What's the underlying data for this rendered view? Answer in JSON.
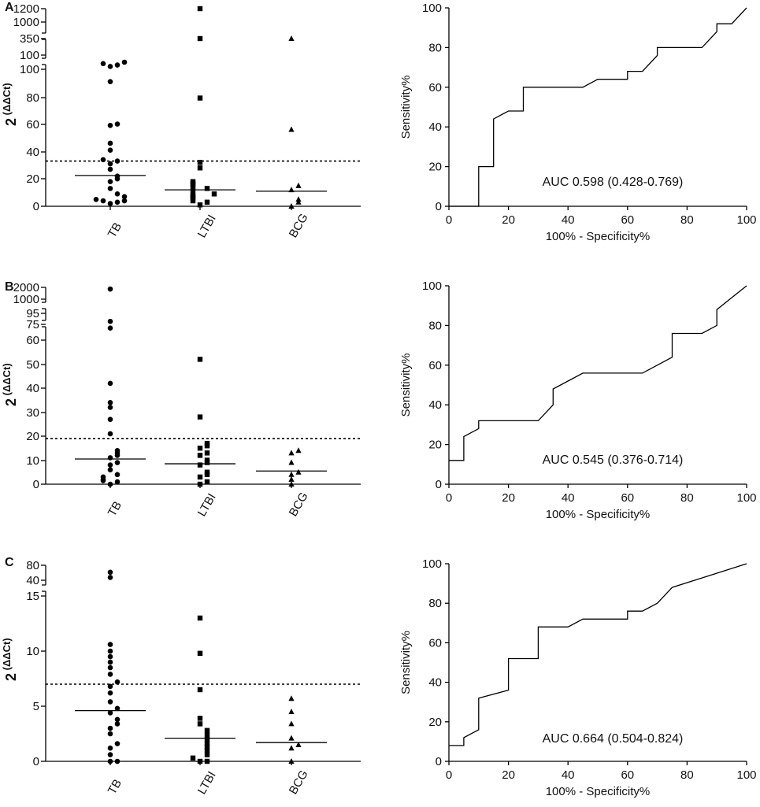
{
  "chart_data": [
    {
      "type": "scatter",
      "panel": "A",
      "kind": "strip",
      "ylabel_base": "2",
      "ylabel_exp": "(ΔΔCt)",
      "categories": [
        "TB",
        "LTBI",
        "BCG"
      ],
      "markers": [
        "circle",
        "square",
        "triangle"
      ],
      "y_ticks": [
        "0",
        "20",
        "40",
        "60",
        "80",
        "100",
        "100",
        "350",
        "1000",
        "1200"
      ],
      "series": [
        {
          "name": "TB",
          "values": [
            2,
            3,
            4,
            4,
            5,
            7,
            9,
            13,
            18,
            20,
            22,
            27,
            31,
            33,
            34,
            41,
            46,
            59,
            60,
            91,
            120,
            130,
            140,
            150
          ]
        },
        {
          "name": "LTBI",
          "values": [
            1,
            3,
            4,
            6,
            7,
            8,
            9,
            11,
            13,
            14,
            16,
            17,
            18,
            28,
            32,
            79,
            350,
            1200
          ]
        },
        {
          "name": "BCG",
          "values": [
            0,
            3,
            5,
            12,
            15,
            56,
            350
          ]
        }
      ],
      "medians": [
        22.5,
        12,
        11
      ],
      "cutoff": 33,
      "roc": {
        "xlabel": "100% - Specificity%",
        "ylabel": "Sensitivity%",
        "x_ticks": [
          0,
          20,
          40,
          60,
          80,
          100
        ],
        "y_ticks": [
          0,
          20,
          40,
          60,
          80,
          100
        ],
        "auc_text": "AUC 0.598 (0.428-0.769)",
        "points": [
          [
            0,
            0
          ],
          [
            10,
            0
          ],
          [
            10,
            20
          ],
          [
            15,
            20
          ],
          [
            15,
            44
          ],
          [
            20,
            48
          ],
          [
            25,
            48
          ],
          [
            25,
            60
          ],
          [
            45,
            60
          ],
          [
            50,
            64
          ],
          [
            60,
            64
          ],
          [
            60,
            68
          ],
          [
            65,
            68
          ],
          [
            70,
            76
          ],
          [
            70,
            80
          ],
          [
            85,
            80
          ],
          [
            90,
            88
          ],
          [
            90,
            92
          ],
          [
            95,
            92
          ],
          [
            100,
            100
          ]
        ]
      }
    },
    {
      "type": "scatter",
      "panel": "B",
      "kind": "strip",
      "ylabel_base": "2",
      "ylabel_exp": "(ΔΔCt)",
      "categories": [
        "TB",
        "LTBI",
        "BCG"
      ],
      "markers": [
        "circle",
        "square",
        "triangle"
      ],
      "y_ticks": [
        "0",
        "10",
        "20",
        "30",
        "40",
        "50",
        "60",
        "75",
        "95",
        "1000",
        "2000"
      ],
      "series": [
        {
          "name": "TB",
          "values": [
            0,
            1,
            1.5,
            2,
            3,
            4,
            6,
            8,
            9,
            11,
            12,
            13,
            14,
            21,
            27,
            32,
            34,
            42,
            78,
            88,
            1800
          ]
        },
        {
          "name": "LTBI",
          "values": [
            0,
            1,
            3,
            4,
            5,
            8,
            9,
            10,
            12,
            13,
            15,
            16,
            17,
            28,
            52
          ]
        },
        {
          "name": "BCG",
          "values": [
            0,
            2,
            4,
            5,
            9,
            13,
            14
          ]
        }
      ],
      "medians": [
        10.5,
        8.5,
        5.5
      ],
      "cutoff": 19,
      "roc": {
        "xlabel": "100% - Specificity%",
        "ylabel": "Sensitivity%",
        "x_ticks": [
          0,
          20,
          40,
          60,
          80,
          100
        ],
        "y_ticks": [
          0,
          20,
          40,
          60,
          80,
          100
        ],
        "auc_text": "AUC 0.545 (0.376-0.714)",
        "points": [
          [
            0,
            12
          ],
          [
            5,
            12
          ],
          [
            5,
            24
          ],
          [
            10,
            28
          ],
          [
            10,
            32
          ],
          [
            30,
            32
          ],
          [
            35,
            40
          ],
          [
            35,
            48
          ],
          [
            40,
            52
          ],
          [
            45,
            56
          ],
          [
            65,
            56
          ],
          [
            75,
            64
          ],
          [
            75,
            76
          ],
          [
            85,
            76
          ],
          [
            90,
            80
          ],
          [
            90,
            88
          ],
          [
            100,
            100
          ]
        ]
      }
    },
    {
      "type": "scatter",
      "panel": "C",
      "kind": "strip",
      "ylabel_base": "2",
      "ylabel_exp": "(ΔΔCt)",
      "categories": [
        "TB",
        "LTBI",
        "BCG"
      ],
      "markers": [
        "circle",
        "square",
        "triangle"
      ],
      "y_ticks": [
        "0",
        "5",
        "10",
        "15",
        "40",
        "80"
      ],
      "series": [
        {
          "name": "TB",
          "values": [
            0,
            0,
            0.6,
            1.2,
            1.6,
            2.5,
            3,
            3.4,
            3.8,
            4.4,
            4.8,
            5.4,
            6.2,
            6.8,
            7.2,
            7.9,
            8.5,
            9.0,
            9.5,
            10.0,
            10.6,
            45,
            60
          ]
        },
        {
          "name": "LTBI",
          "values": [
            0,
            0,
            0.3,
            0.6,
            1.0,
            1.3,
            1.6,
            2.0,
            2.4,
            2.8,
            3.4,
            3.9,
            6.5,
            9.8,
            13.0
          ]
        },
        {
          "name": "BCG",
          "values": [
            0,
            1.2,
            1.5,
            2.1,
            3.4,
            4.5,
            5.7
          ]
        }
      ],
      "medians": [
        4.6,
        2.1,
        1.7
      ],
      "cutoff": 7,
      "roc": {
        "xlabel": "100% - Specificity%",
        "ylabel": "Sensitivity%",
        "x_ticks": [
          0,
          20,
          40,
          60,
          80,
          100
        ],
        "y_ticks": [
          0,
          20,
          40,
          60,
          80,
          100
        ],
        "auc_text": "AUC 0.664 (0.504-0.824)",
        "points": [
          [
            0,
            8
          ],
          [
            5,
            8
          ],
          [
            5,
            12
          ],
          [
            10,
            16
          ],
          [
            10,
            32
          ],
          [
            20,
            36
          ],
          [
            20,
            52
          ],
          [
            30,
            52
          ],
          [
            30,
            68
          ],
          [
            40,
            68
          ],
          [
            45,
            72
          ],
          [
            60,
            72
          ],
          [
            60,
            76
          ],
          [
            65,
            76
          ],
          [
            70,
            80
          ],
          [
            75,
            88
          ],
          [
            100,
            100
          ]
        ]
      }
    }
  ]
}
